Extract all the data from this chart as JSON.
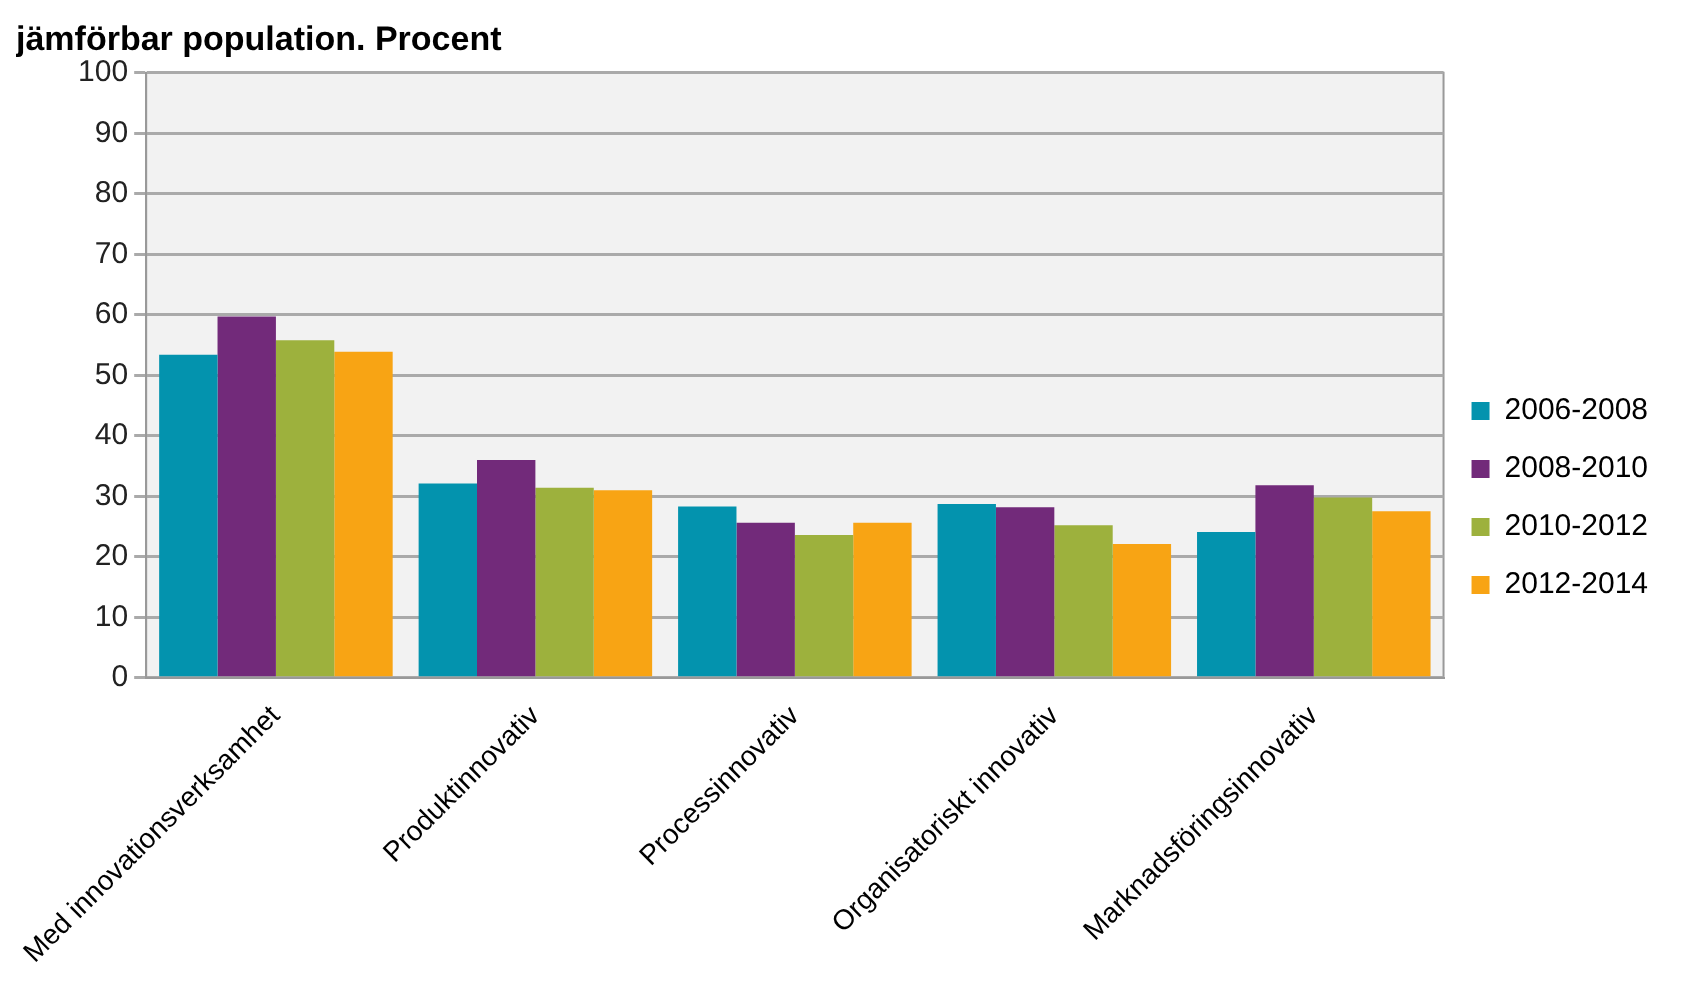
{
  "chart_data": {
    "type": "bar",
    "title": "jämförbar population. Procent",
    "categories": [
      "Med innovationsverksamhet",
      "Produktinnovativ",
      "Processinnovativ",
      "Organisatoriskt innovativ",
      "Marknadsföringsinnovativ"
    ],
    "series": [
      {
        "name": "2006-2008",
        "color": "#0393ae",
        "values": [
          53.4,
          32.1,
          28.3,
          28.7,
          24.1
        ]
      },
      {
        "name": "2008-2010",
        "color": "#722a7a",
        "values": [
          59.7,
          36.0,
          25.6,
          28.2,
          31.8
        ]
      },
      {
        "name": "2010-2012",
        "color": "#9db13d",
        "values": [
          55.8,
          31.4,
          23.6,
          25.2,
          29.8
        ]
      },
      {
        "name": "2012-2014",
        "color": "#f8a414",
        "values": [
          53.9,
          31.0,
          25.6,
          22.1,
          27.5
        ]
      }
    ],
    "ylim": [
      0,
      100
    ],
    "yticks": [
      0,
      10,
      20,
      30,
      40,
      50,
      60,
      70,
      80,
      90,
      100
    ],
    "grid": "y",
    "legend": "right"
  }
}
